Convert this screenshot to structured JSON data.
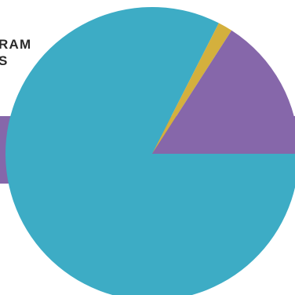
{
  "heading": {
    "line1": "RAM",
    "line2": "S"
  },
  "colors": {
    "background": "#ffffff",
    "band": "#8667aa",
    "heading_text": "#2a2a2a"
  },
  "chart_data": {
    "type": "pie",
    "title": "",
    "slices": [
      {
        "label": "",
        "value": 82.5,
        "color": "#3dacc5"
      },
      {
        "label": "",
        "value": 1.6,
        "color": "#d4b03d"
      },
      {
        "label": "",
        "value": 15.9,
        "color": "#8667aa"
      }
    ],
    "legend": "none"
  }
}
